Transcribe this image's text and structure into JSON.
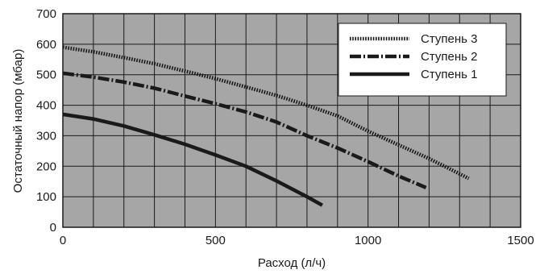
{
  "chart_data": {
    "type": "line",
    "title": "",
    "xlabel": "Расход (л/ч)",
    "ylabel": "Остаточный напор (мбар)",
    "xlim": [
      0,
      1500
    ],
    "ylim": [
      0,
      700
    ],
    "x_ticks": [
      0,
      500,
      1000,
      1500
    ],
    "y_ticks": [
      0,
      100,
      200,
      300,
      400,
      500,
      600,
      700
    ],
    "grid": true,
    "plot_background": "#a6a6a6",
    "legend_position": "top-right",
    "series": [
      {
        "name": "Ступень 3",
        "style": "dotted",
        "color": "#1a1a1a",
        "points": [
          [
            0,
            590
          ],
          [
            100,
            575
          ],
          [
            200,
            556
          ],
          [
            300,
            536
          ],
          [
            400,
            512
          ],
          [
            500,
            487
          ],
          [
            600,
            460
          ],
          [
            700,
            432
          ],
          [
            800,
            400
          ],
          [
            900,
            365
          ],
          [
            1000,
            315
          ],
          [
            1100,
            270
          ],
          [
            1200,
            225
          ],
          [
            1330,
            160
          ]
        ]
      },
      {
        "name": "Ступень 2",
        "style": "dash-dot",
        "color": "#1a1a1a",
        "points": [
          [
            0,
            505
          ],
          [
            100,
            492
          ],
          [
            200,
            476
          ],
          [
            300,
            456
          ],
          [
            400,
            430
          ],
          [
            500,
            405
          ],
          [
            600,
            378
          ],
          [
            700,
            345
          ],
          [
            800,
            300
          ],
          [
            900,
            260
          ],
          [
            1000,
            215
          ],
          [
            1100,
            168
          ],
          [
            1190,
            130
          ]
        ]
      },
      {
        "name": "Ступень 1",
        "style": "solid",
        "color": "#1a1a1a",
        "points": [
          [
            0,
            370
          ],
          [
            100,
            355
          ],
          [
            200,
            332
          ],
          [
            300,
            303
          ],
          [
            400,
            272
          ],
          [
            500,
            237
          ],
          [
            600,
            200
          ],
          [
            700,
            152
          ],
          [
            800,
            100
          ],
          [
            850,
            72
          ]
        ]
      }
    ]
  }
}
